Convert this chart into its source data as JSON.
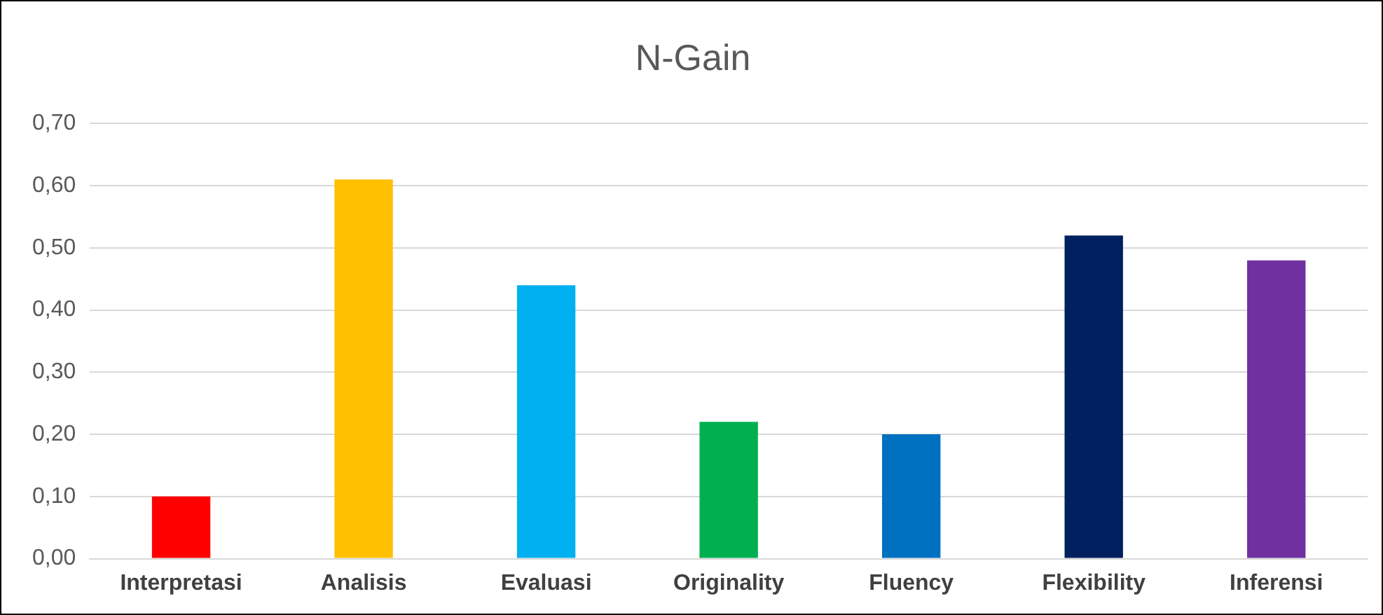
{
  "chart_data": {
    "type": "bar",
    "title": "N-Gain",
    "categories": [
      "Interpretasi",
      "Analisis",
      "Evaluasi",
      "Originality",
      "Fluency",
      "Flexibility",
      "Inferensi"
    ],
    "values": [
      0.1,
      0.61,
      0.44,
      0.22,
      0.2,
      0.52,
      0.48
    ],
    "colors": [
      "#ff0000",
      "#ffc000",
      "#00b0f0",
      "#00b050",
      "#0070c0",
      "#002060",
      "#7030a0"
    ],
    "ylim": [
      0,
      0.7
    ],
    "yticks": [
      {
        "value": 0,
        "label": "0,00"
      },
      {
        "value": 0.1,
        "label": "0,10"
      },
      {
        "value": 0.2,
        "label": "0,20"
      },
      {
        "value": 0.3,
        "label": "0,30"
      },
      {
        "value": 0.4,
        "label": "0,40"
      },
      {
        "value": 0.5,
        "label": "0,50"
      },
      {
        "value": 0.6,
        "label": "0,60"
      },
      {
        "value": 0.7,
        "label": "0,70"
      }
    ],
    "grid": "y"
  }
}
